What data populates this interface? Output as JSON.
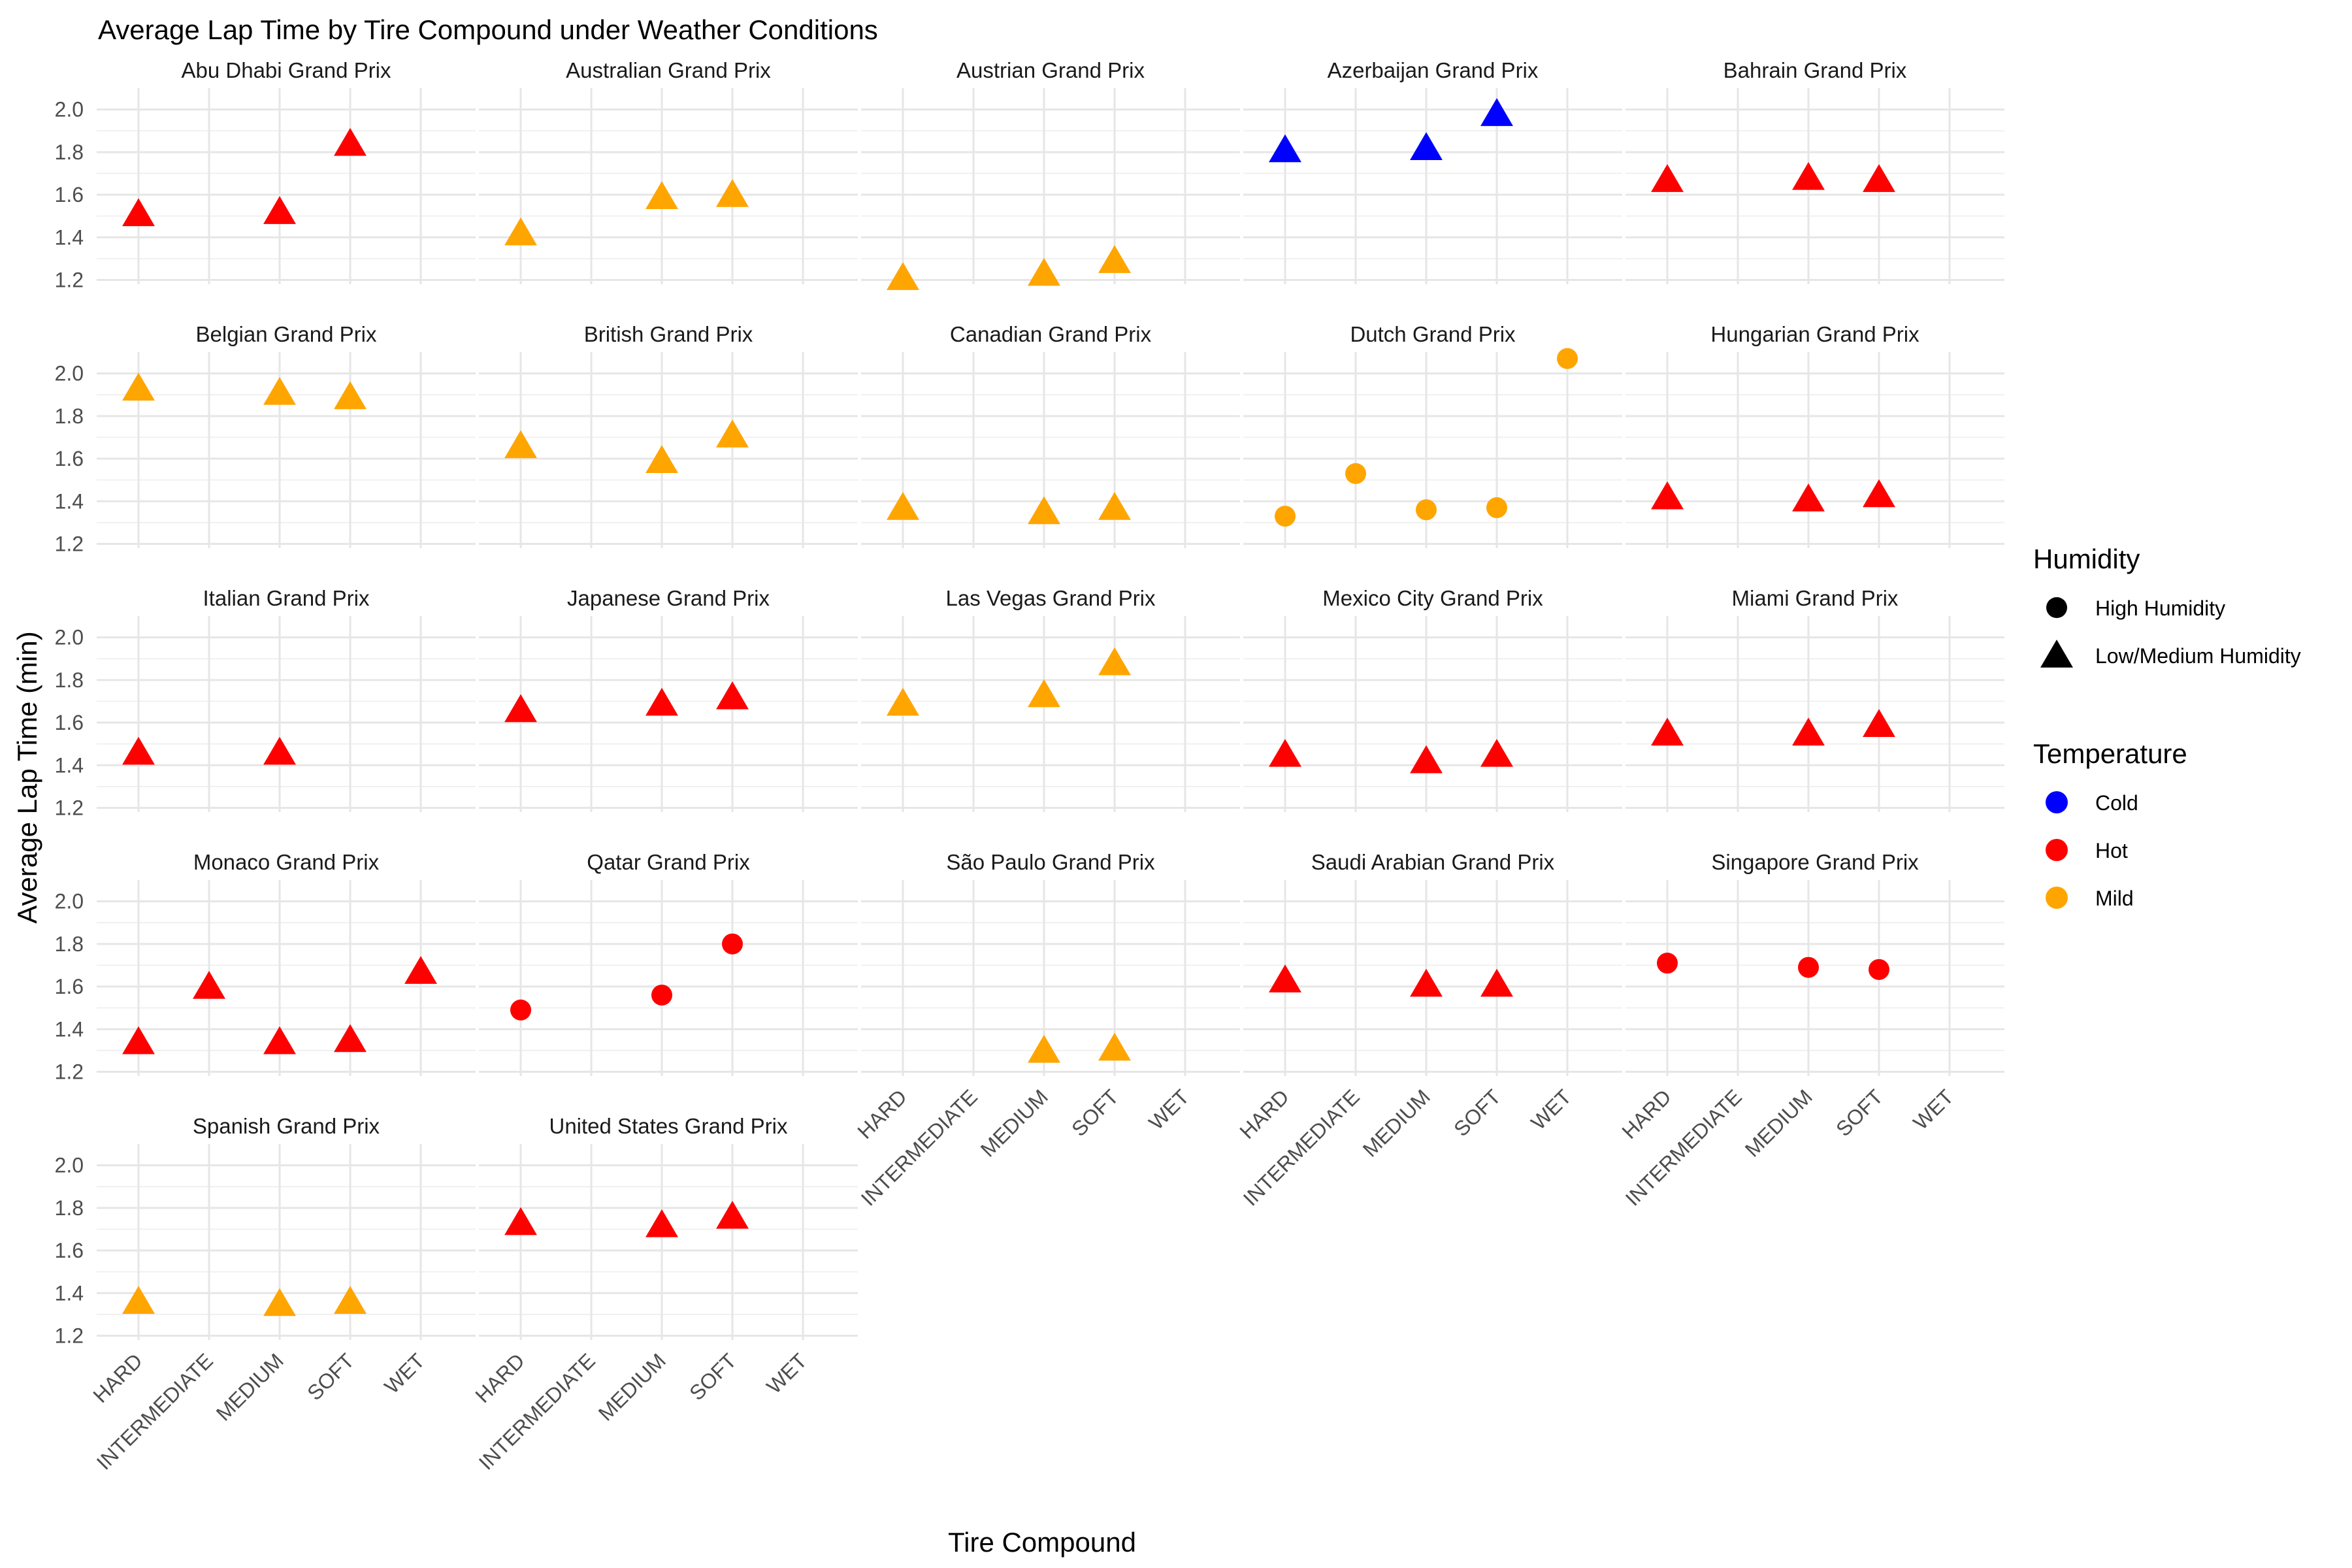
{
  "chart_data": {
    "type": "scatter",
    "title": "Average Lap Time by Tire Compound under Weather Conditions",
    "xlabel": "Tire Compound",
    "ylabel": "Average Lap Time (min)",
    "categories": [
      "HARD",
      "INTERMEDIATE",
      "MEDIUM",
      "SOFT",
      "WET"
    ],
    "y_ticks": [
      "1.2",
      "1.4",
      "1.6",
      "1.8",
      "2.0"
    ],
    "ylim": [
      1.18,
      2.1
    ],
    "grid": true,
    "legend_position": "right",
    "legends": [
      {
        "title": "Humidity",
        "entries": [
          {
            "label": "High Humidity",
            "shape": "circle"
          },
          {
            "label": "Low/Medium Humidity",
            "shape": "triangle"
          }
        ]
      },
      {
        "title": "Temperature",
        "entries": [
          {
            "label": "Cold",
            "color": "#0000FF"
          },
          {
            "label": "Hot",
            "color": "#FF0000"
          },
          {
            "label": "Mild",
            "color": "#FFA500"
          }
        ]
      }
    ],
    "facets": [
      {
        "title": "Abu Dhabi Grand Prix",
        "points": [
          {
            "x": "HARD",
            "y": 1.51,
            "humidity": "Low/Medium Humidity",
            "temperature": "Hot"
          },
          {
            "x": "MEDIUM",
            "y": 1.52,
            "humidity": "Low/Medium Humidity",
            "temperature": "Hot"
          },
          {
            "x": "SOFT",
            "y": 1.84,
            "humidity": "Low/Medium Humidity",
            "temperature": "Hot"
          }
        ]
      },
      {
        "title": "Australian Grand Prix",
        "points": [
          {
            "x": "HARD",
            "y": 1.42,
            "humidity": "Low/Medium Humidity",
            "temperature": "Mild"
          },
          {
            "x": "MEDIUM",
            "y": 1.59,
            "humidity": "Low/Medium Humidity",
            "temperature": "Mild"
          },
          {
            "x": "SOFT",
            "y": 1.6,
            "humidity": "Low/Medium Humidity",
            "temperature": "Mild"
          }
        ]
      },
      {
        "title": "Austrian Grand Prix",
        "points": [
          {
            "x": "HARD",
            "y": 1.21,
            "humidity": "Low/Medium Humidity",
            "temperature": "Mild"
          },
          {
            "x": "MEDIUM",
            "y": 1.23,
            "humidity": "Low/Medium Humidity",
            "temperature": "Mild"
          },
          {
            "x": "SOFT",
            "y": 1.29,
            "humidity": "Low/Medium Humidity",
            "temperature": "Mild"
          }
        ]
      },
      {
        "title": "Azerbaijan Grand Prix",
        "points": [
          {
            "x": "HARD",
            "y": 1.81,
            "humidity": "Low/Medium Humidity",
            "temperature": "Cold"
          },
          {
            "x": "MEDIUM",
            "y": 1.82,
            "humidity": "Low/Medium Humidity",
            "temperature": "Cold"
          },
          {
            "x": "SOFT",
            "y": 1.98,
            "humidity": "Low/Medium Humidity",
            "temperature": "Cold"
          }
        ]
      },
      {
        "title": "Bahrain Grand Prix",
        "points": [
          {
            "x": "HARD",
            "y": 1.67,
            "humidity": "Low/Medium Humidity",
            "temperature": "Hot"
          },
          {
            "x": "MEDIUM",
            "y": 1.68,
            "humidity": "Low/Medium Humidity",
            "temperature": "Hot"
          },
          {
            "x": "SOFT",
            "y": 1.67,
            "humidity": "Low/Medium Humidity",
            "temperature": "Hot"
          }
        ]
      },
      {
        "title": "Belgian Grand Prix",
        "points": [
          {
            "x": "HARD",
            "y": 1.93,
            "humidity": "Low/Medium Humidity",
            "temperature": "Mild"
          },
          {
            "x": "MEDIUM",
            "y": 1.91,
            "humidity": "Low/Medium Humidity",
            "temperature": "Mild"
          },
          {
            "x": "SOFT",
            "y": 1.89,
            "humidity": "Low/Medium Humidity",
            "temperature": "Mild"
          }
        ]
      },
      {
        "title": "British Grand Prix",
        "points": [
          {
            "x": "HARD",
            "y": 1.66,
            "humidity": "Low/Medium Humidity",
            "temperature": "Mild"
          },
          {
            "x": "MEDIUM",
            "y": 1.59,
            "humidity": "Low/Medium Humidity",
            "temperature": "Mild"
          },
          {
            "x": "SOFT",
            "y": 1.71,
            "humidity": "Low/Medium Humidity",
            "temperature": "Mild"
          }
        ]
      },
      {
        "title": "Canadian Grand Prix",
        "points": [
          {
            "x": "HARD",
            "y": 1.37,
            "humidity": "Low/Medium Humidity",
            "temperature": "Mild"
          },
          {
            "x": "MEDIUM",
            "y": 1.35,
            "humidity": "Low/Medium Humidity",
            "temperature": "Mild"
          },
          {
            "x": "SOFT",
            "y": 1.37,
            "humidity": "Low/Medium Humidity",
            "temperature": "Mild"
          }
        ]
      },
      {
        "title": "Dutch Grand Prix",
        "points": [
          {
            "x": "HARD",
            "y": 1.33,
            "humidity": "High Humidity",
            "temperature": "Mild"
          },
          {
            "x": "INTERMEDIATE",
            "y": 1.53,
            "humidity": "High Humidity",
            "temperature": "Mild"
          },
          {
            "x": "MEDIUM",
            "y": 1.36,
            "humidity": "High Humidity",
            "temperature": "Mild"
          },
          {
            "x": "SOFT",
            "y": 1.37,
            "humidity": "High Humidity",
            "temperature": "Mild"
          },
          {
            "x": "WET",
            "y": 2.07,
            "humidity": "High Humidity",
            "temperature": "Mild"
          }
        ]
      },
      {
        "title": "Hungarian Grand Prix",
        "points": [
          {
            "x": "HARD",
            "y": 1.42,
            "humidity": "Low/Medium Humidity",
            "temperature": "Hot"
          },
          {
            "x": "MEDIUM",
            "y": 1.41,
            "humidity": "Low/Medium Humidity",
            "temperature": "Hot"
          },
          {
            "x": "SOFT",
            "y": 1.43,
            "humidity": "Low/Medium Humidity",
            "temperature": "Hot"
          }
        ]
      },
      {
        "title": "Italian Grand Prix",
        "points": [
          {
            "x": "HARD",
            "y": 1.46,
            "humidity": "Low/Medium Humidity",
            "temperature": "Hot"
          },
          {
            "x": "MEDIUM",
            "y": 1.46,
            "humidity": "Low/Medium Humidity",
            "temperature": "Hot"
          }
        ]
      },
      {
        "title": "Japanese Grand Prix",
        "points": [
          {
            "x": "HARD",
            "y": 1.66,
            "humidity": "Low/Medium Humidity",
            "temperature": "Hot"
          },
          {
            "x": "MEDIUM",
            "y": 1.69,
            "humidity": "Low/Medium Humidity",
            "temperature": "Hot"
          },
          {
            "x": "SOFT",
            "y": 1.72,
            "humidity": "Low/Medium Humidity",
            "temperature": "Hot"
          }
        ]
      },
      {
        "title": "Las Vegas Grand Prix",
        "points": [
          {
            "x": "HARD",
            "y": 1.69,
            "humidity": "Low/Medium Humidity",
            "temperature": "Mild"
          },
          {
            "x": "MEDIUM",
            "y": 1.73,
            "humidity": "Low/Medium Humidity",
            "temperature": "Mild"
          },
          {
            "x": "SOFT",
            "y": 1.88,
            "humidity": "Low/Medium Humidity",
            "temperature": "Mild"
          }
        ]
      },
      {
        "title": "Mexico City Grand Prix",
        "points": [
          {
            "x": "HARD",
            "y": 1.45,
            "humidity": "Low/Medium Humidity",
            "temperature": "Hot"
          },
          {
            "x": "MEDIUM",
            "y": 1.42,
            "humidity": "Low/Medium Humidity",
            "temperature": "Hot"
          },
          {
            "x": "SOFT",
            "y": 1.45,
            "humidity": "Low/Medium Humidity",
            "temperature": "Hot"
          }
        ]
      },
      {
        "title": "Miami Grand Prix",
        "points": [
          {
            "x": "HARD",
            "y": 1.55,
            "humidity": "Low/Medium Humidity",
            "temperature": "Hot"
          },
          {
            "x": "MEDIUM",
            "y": 1.55,
            "humidity": "Low/Medium Humidity",
            "temperature": "Hot"
          },
          {
            "x": "SOFT",
            "y": 1.59,
            "humidity": "Low/Medium Humidity",
            "temperature": "Hot"
          }
        ]
      },
      {
        "title": "Monaco Grand Prix",
        "points": [
          {
            "x": "HARD",
            "y": 1.34,
            "humidity": "Low/Medium Humidity",
            "temperature": "Hot"
          },
          {
            "x": "INTERMEDIATE",
            "y": 1.6,
            "humidity": "Low/Medium Humidity",
            "temperature": "Hot"
          },
          {
            "x": "MEDIUM",
            "y": 1.34,
            "humidity": "Low/Medium Humidity",
            "temperature": "Hot"
          },
          {
            "x": "SOFT",
            "y": 1.35,
            "humidity": "Low/Medium Humidity",
            "temperature": "Hot"
          },
          {
            "x": "WET",
            "y": 1.67,
            "humidity": "Low/Medium Humidity",
            "temperature": "Hot"
          }
        ]
      },
      {
        "title": "Qatar Grand Prix",
        "points": [
          {
            "x": "HARD",
            "y": 1.49,
            "humidity": "High Humidity",
            "temperature": "Hot"
          },
          {
            "x": "MEDIUM",
            "y": 1.56,
            "humidity": "High Humidity",
            "temperature": "Hot"
          },
          {
            "x": "SOFT",
            "y": 1.8,
            "humidity": "High Humidity",
            "temperature": "Hot"
          }
        ]
      },
      {
        "title": "São Paulo Grand Prix",
        "points": [
          {
            "x": "MEDIUM",
            "y": 1.3,
            "humidity": "Low/Medium Humidity",
            "temperature": "Mild"
          },
          {
            "x": "SOFT",
            "y": 1.31,
            "humidity": "Low/Medium Humidity",
            "temperature": "Mild"
          }
        ]
      },
      {
        "title": "Saudi Arabian Grand Prix",
        "points": [
          {
            "x": "HARD",
            "y": 1.63,
            "humidity": "Low/Medium Humidity",
            "temperature": "Hot"
          },
          {
            "x": "MEDIUM",
            "y": 1.61,
            "humidity": "Low/Medium Humidity",
            "temperature": "Hot"
          },
          {
            "x": "SOFT",
            "y": 1.61,
            "humidity": "Low/Medium Humidity",
            "temperature": "Hot"
          }
        ]
      },
      {
        "title": "Singapore Grand Prix",
        "points": [
          {
            "x": "HARD",
            "y": 1.71,
            "humidity": "High Humidity",
            "temperature": "Hot"
          },
          {
            "x": "MEDIUM",
            "y": 1.69,
            "humidity": "High Humidity",
            "temperature": "Hot"
          },
          {
            "x": "SOFT",
            "y": 1.68,
            "humidity": "High Humidity",
            "temperature": "Hot"
          }
        ]
      },
      {
        "title": "Spanish Grand Prix",
        "points": [
          {
            "x": "HARD",
            "y": 1.36,
            "humidity": "Low/Medium Humidity",
            "temperature": "Mild"
          },
          {
            "x": "MEDIUM",
            "y": 1.35,
            "humidity": "Low/Medium Humidity",
            "temperature": "Mild"
          },
          {
            "x": "SOFT",
            "y": 1.36,
            "humidity": "Low/Medium Humidity",
            "temperature": "Mild"
          }
        ]
      },
      {
        "title": "United States Grand Prix",
        "points": [
          {
            "x": "HARD",
            "y": 1.73,
            "humidity": "Low/Medium Humidity",
            "temperature": "Hot"
          },
          {
            "x": "MEDIUM",
            "y": 1.72,
            "humidity": "Low/Medium Humidity",
            "temperature": "Hot"
          },
          {
            "x": "SOFT",
            "y": 1.76,
            "humidity": "Low/Medium Humidity",
            "temperature": "Hot"
          }
        ]
      }
    ]
  }
}
